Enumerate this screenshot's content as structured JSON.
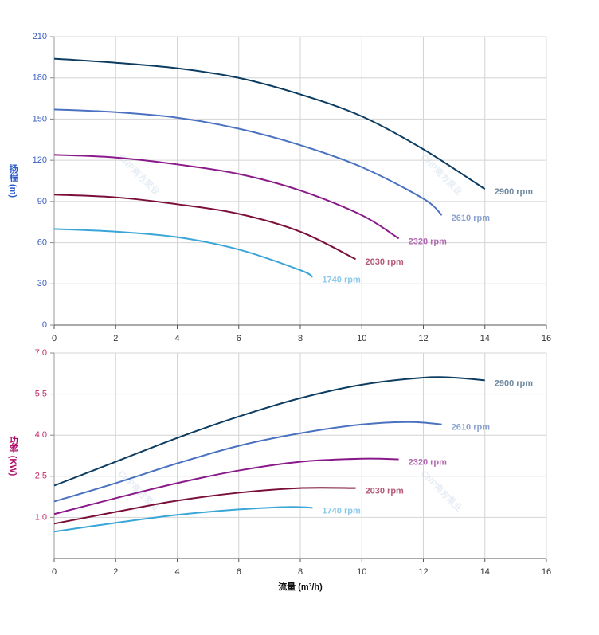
{
  "chart_data": [
    {
      "type": "line",
      "ylabel": "扬程 (m)",
      "watermark": "CNP南方泵业",
      "xlim": [
        0,
        16
      ],
      "xticks": [
        0,
        2,
        4,
        6,
        8,
        10,
        12,
        14,
        16
      ],
      "ylim": [
        0,
        210
      ],
      "yticks": [
        0,
        30,
        60,
        90,
        120,
        150,
        180,
        210
      ],
      "grid": true,
      "tick_color": "#3a5fc0",
      "label_color": "#2a5bc8",
      "series": [
        {
          "name": "2900 rpm",
          "color": "#0d3c61",
          "label_color": "#6f8aa0",
          "x": [
            0,
            2,
            4,
            6,
            8,
            10,
            12,
            14
          ],
          "values": [
            194,
            191,
            187,
            180,
            168,
            152,
            128,
            99
          ]
        },
        {
          "name": "2610 rpm",
          "color": "#4a72c0",
          "label_color": "#8ba2d0",
          "x": [
            0,
            2,
            4,
            6,
            8,
            10,
            12,
            12.6
          ],
          "values": [
            157,
            155,
            151,
            143,
            131,
            115,
            92,
            80
          ]
        },
        {
          "name": "2320 rpm",
          "color": "#8a1a8a",
          "label_color": "#b06ab0",
          "x": [
            0,
            2,
            4,
            6,
            8,
            10,
            11.2
          ],
          "values": [
            124,
            122,
            117,
            110,
            98,
            80,
            63
          ]
        },
        {
          "name": "2030 rpm",
          "color": "#7a0f3a",
          "label_color": "#b45a78",
          "x": [
            0,
            2,
            4,
            6,
            8,
            9.8
          ],
          "values": [
            95,
            93,
            88,
            81,
            68,
            48
          ]
        },
        {
          "name": "1740 rpm",
          "color": "#3aa6d8",
          "label_color": "#8ccaea",
          "x": [
            0,
            2,
            4,
            6,
            8,
            8.4
          ],
          "values": [
            70,
            68,
            64,
            55,
            40,
            35
          ]
        }
      ]
    },
    {
      "type": "line",
      "ylabel": "功率 (KW)",
      "xlabel": "流量 (m³/h)",
      "watermark": "CNP南方泵业",
      "xlim": [
        0,
        16
      ],
      "xticks": [
        0,
        2,
        4,
        6,
        8,
        10,
        12,
        14,
        16
      ],
      "ylim": [
        -0.5,
        7
      ],
      "yticks": [
        {
          "value": 1,
          "label": "1.0"
        },
        2.5,
        {
          "value": 4,
          "label": "4.0"
        },
        5.5,
        {
          "value": 7,
          "label": "7.0"
        }
      ],
      "grid": true,
      "tick_color": "#c0306a",
      "label_color": "#b0106a",
      "series": [
        {
          "name": "2900 rpm",
          "color": "#0d3c61",
          "label_color": "#6f8aa0",
          "x": [
            0,
            2,
            4,
            6,
            8,
            10,
            12,
            13,
            14
          ],
          "values": [
            2.16,
            3.03,
            3.9,
            4.68,
            5.35,
            5.84,
            6.1,
            6.1,
            6.0
          ]
        },
        {
          "name": "2610 rpm",
          "color": "#4a72c0",
          "label_color": "#8ba2d0",
          "x": [
            0,
            2,
            4,
            6,
            8,
            10,
            11.6,
            12.6
          ],
          "values": [
            1.58,
            2.25,
            2.97,
            3.61,
            4.07,
            4.39,
            4.48,
            4.39
          ]
        },
        {
          "name": "2320 rpm",
          "color": "#8a1a8a",
          "label_color": "#b06ab0",
          "x": [
            0,
            2,
            4,
            6,
            8,
            10,
            11.2
          ],
          "values": [
            1.12,
            1.7,
            2.25,
            2.71,
            3.03,
            3.14,
            3.12
          ]
        },
        {
          "name": "2030 rpm",
          "color": "#7a0f3a",
          "label_color": "#b45a78",
          "x": [
            0,
            2,
            4,
            6,
            8,
            9.8
          ],
          "values": [
            0.77,
            1.2,
            1.61,
            1.9,
            2.07,
            2.07
          ]
        },
        {
          "name": "1740 rpm",
          "color": "#3aa6d8",
          "label_color": "#8ccaea",
          "x": [
            0,
            2,
            4,
            6,
            7.6,
            8.4
          ],
          "values": [
            0.48,
            0.8,
            1.09,
            1.29,
            1.38,
            1.35
          ]
        }
      ]
    }
  ]
}
